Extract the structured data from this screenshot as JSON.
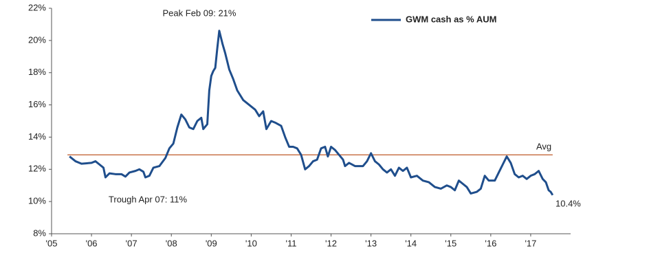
{
  "chart_data": {
    "type": "line",
    "legend": "top-right",
    "annotations": [
      {
        "text": "Peak Feb 09: 21%"
      },
      {
        "text": "Trough Apr 07: 11%"
      },
      {
        "text": "10.4%"
      }
    ],
    "avg": {
      "label": "Avg",
      "value": 12.9,
      "color": "#c8734a"
    },
    "xlim": [
      2005,
      2018
    ],
    "xticks": [
      {
        "value": 2005,
        "label": "'05"
      },
      {
        "value": 2006,
        "label": "'06"
      },
      {
        "value": 2007,
        "label": "'07"
      },
      {
        "value": 2008,
        "label": "'08"
      },
      {
        "value": 2009,
        "label": "'09"
      },
      {
        "value": 2010,
        "label": "'10"
      },
      {
        "value": 2011,
        "label": "'11"
      },
      {
        "value": 2012,
        "label": "'12"
      },
      {
        "value": 2013,
        "label": "'13"
      },
      {
        "value": 2014,
        "label": "'14"
      },
      {
        "value": 2015,
        "label": "'15"
      },
      {
        "value": 2016,
        "label": "'16"
      },
      {
        "value": 2017,
        "label": "'17"
      }
    ],
    "ylim": [
      8,
      22
    ],
    "yticks": [
      {
        "value": 8,
        "label": "8%"
      },
      {
        "value": 10,
        "label": "10%"
      },
      {
        "value": 12,
        "label": "12%"
      },
      {
        "value": 14,
        "label": "14%"
      },
      {
        "value": 16,
        "label": "16%"
      },
      {
        "value": 18,
        "label": "18%"
      },
      {
        "value": 20,
        "label": "20%"
      },
      {
        "value": 22,
        "label": "22%"
      }
    ],
    "x": [
      2005.45,
      2005.6,
      2005.75,
      2006.0,
      2006.1,
      2006.2,
      2006.3,
      2006.35,
      2006.45,
      2006.6,
      2006.75,
      2006.85,
      2006.95,
      2007.1,
      2007.2,
      2007.3,
      2007.35,
      2007.45,
      2007.55,
      2007.7,
      2007.85,
      2007.95,
      2008.05,
      2008.15,
      2008.25,
      2008.35,
      2008.45,
      2008.55,
      2008.65,
      2008.75,
      2008.8,
      2008.9,
      2008.95,
      2009.0,
      2009.05,
      2009.1,
      2009.15,
      2009.2,
      2009.28,
      2009.35,
      2009.45,
      2009.55,
      2009.65,
      2009.8,
      2009.95,
      2010.1,
      2010.2,
      2010.3,
      2010.38,
      2010.5,
      2010.6,
      2010.75,
      2010.85,
      2010.95,
      2011.05,
      2011.15,
      2011.25,
      2011.35,
      2011.45,
      2011.55,
      2011.65,
      2011.75,
      2011.85,
      2011.92,
      2012.0,
      2012.1,
      2012.2,
      2012.3,
      2012.35,
      2012.45,
      2012.6,
      2012.8,
      2012.9,
      2013.0,
      2013.1,
      2013.2,
      2013.3,
      2013.4,
      2013.5,
      2013.6,
      2013.7,
      2013.8,
      2013.9,
      2014.0,
      2014.15,
      2014.3,
      2014.45,
      2014.6,
      2014.75,
      2014.9,
      2015.0,
      2015.1,
      2015.2,
      2015.3,
      2015.4,
      2015.5,
      2015.65,
      2015.75,
      2015.85,
      2015.95,
      2016.1,
      2016.2,
      2016.3,
      2016.4,
      2016.5,
      2016.6,
      2016.7,
      2016.8,
      2016.9,
      2017.0,
      2017.1,
      2017.2,
      2017.3,
      2017.38,
      2017.45,
      2017.5,
      2017.55
    ],
    "series": [
      {
        "name": "GWM cash as % AUM",
        "color": "#1f4e8c",
        "values": [
          12.8,
          12.5,
          12.35,
          12.4,
          12.5,
          12.3,
          12.1,
          11.5,
          11.75,
          11.7,
          11.7,
          11.55,
          11.8,
          11.9,
          12.0,
          11.85,
          11.5,
          11.6,
          12.1,
          12.2,
          12.7,
          13.3,
          13.6,
          14.6,
          15.4,
          15.1,
          14.6,
          14.5,
          15.0,
          15.2,
          14.5,
          14.8,
          16.9,
          17.8,
          18.1,
          18.3,
          19.5,
          20.6,
          19.8,
          19.2,
          18.2,
          17.6,
          16.9,
          16.3,
          16.0,
          15.7,
          15.3,
          15.6,
          14.5,
          15.0,
          14.9,
          14.7,
          14.0,
          13.4,
          13.4,
          13.3,
          12.9,
          12.0,
          12.2,
          12.5,
          12.6,
          13.3,
          13.4,
          12.8,
          13.4,
          13.2,
          12.9,
          12.6,
          12.2,
          12.4,
          12.2,
          12.2,
          12.5,
          13.0,
          12.5,
          12.3,
          12.0,
          11.8,
          12.0,
          11.6,
          12.1,
          11.9,
          12.1,
          11.5,
          11.6,
          11.3,
          11.2,
          10.9,
          10.8,
          11.0,
          10.9,
          10.7,
          11.3,
          11.1,
          10.9,
          10.5,
          10.6,
          10.8,
          11.6,
          11.3,
          11.3,
          11.8,
          12.3,
          12.8,
          12.4,
          11.7,
          11.5,
          11.6,
          11.4,
          11.6,
          11.7,
          11.9,
          11.4,
          11.2,
          10.7,
          10.6,
          10.4
        ]
      }
    ]
  }
}
